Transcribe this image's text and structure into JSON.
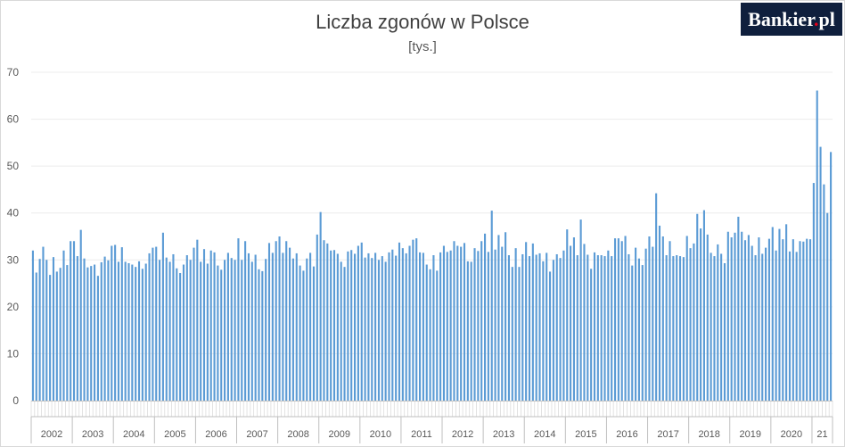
{
  "title": "Liczba zgonów w Polsce",
  "subtitle": "[tys.]",
  "logo_text": "Bankier.pl",
  "colors": {
    "bar": "#5b9bd5",
    "axis": "#bfbfbf",
    "grid": "#ececec",
    "text": "#595959"
  },
  "chart_data": {
    "type": "bar",
    "title": "Liczba zgonów w Polsce",
    "subtitle": "[tys.]",
    "ylim": [
      0,
      70
    ],
    "yticks": [
      0,
      10,
      20,
      30,
      40,
      50,
      60,
      70
    ],
    "grid": true,
    "year_labels": [
      "2002",
      "2003",
      "2004",
      "2005",
      "2006",
      "2007",
      "2008",
      "2009",
      "2010",
      "2011",
      "2012",
      "2013",
      "2014",
      "2015",
      "2016",
      "2017",
      "2018",
      "2019",
      "2020",
      "21"
    ],
    "series": [
      {
        "values": [
          32.0,
          27.3,
          30.2,
          32.8,
          30.0,
          26.8,
          30.6,
          27.5,
          28.3,
          32.0,
          28.9,
          34.0,
          34.0,
          30.8,
          36.4,
          30.3,
          28.4,
          28.7,
          29.0,
          26.6,
          29.5,
          30.7,
          29.9,
          33.0,
          33.2,
          29.6,
          32.7,
          29.6,
          29.3,
          29.0,
          28.5,
          29.7,
          28.1,
          29.2,
          31.4,
          32.6,
          32.8,
          30.0,
          35.8,
          30.5,
          29.6,
          31.2,
          28.2,
          27.2,
          29.0,
          31.0,
          30.0,
          32.6,
          34.3,
          29.6,
          32.3,
          29.2,
          32.0,
          31.6,
          28.8,
          27.9,
          30.0,
          31.5,
          30.4,
          30.0,
          34.6,
          30.0,
          34.0,
          31.4,
          29.6,
          31.1,
          28.0,
          27.6,
          30.2,
          33.6,
          31.5,
          34.0,
          35.0,
          31.5,
          34.0,
          32.6,
          30.3,
          31.4,
          28.8,
          27.7,
          30.3,
          31.5,
          28.6,
          35.4,
          40.2,
          34.2,
          33.5,
          32.0,
          32.1,
          31.3,
          29.6,
          28.5,
          31.8,
          32.1,
          31.3,
          33.0,
          33.7,
          30.5,
          31.4,
          30.4,
          31.5,
          30.0,
          30.8,
          29.6,
          31.6,
          32.2,
          30.9,
          33.7,
          32.5,
          31.4,
          33.0,
          34.3,
          34.6,
          31.6,
          31.5,
          29.0,
          28.0,
          31.0,
          27.7,
          31.6,
          33.0,
          31.7,
          32.0,
          34.0,
          33.0,
          32.8,
          33.6,
          29.7,
          29.6,
          32.5,
          31.9,
          34.0,
          35.6,
          31.7,
          40.5,
          32.2,
          35.3,
          32.8,
          35.9,
          31.0,
          28.5,
          32.5,
          28.5,
          31.2,
          33.8,
          30.8,
          33.5,
          31.1,
          31.4,
          29.7,
          31.5,
          27.5,
          30.0,
          31.2,
          30.4,
          32.0,
          36.5,
          33.0,
          34.8,
          31.0,
          38.6,
          33.4,
          31.1,
          28.1,
          31.6,
          31.0,
          31.0,
          30.8,
          32.0,
          30.8,
          34.6,
          34.6,
          34.0,
          35.1,
          31.2,
          28.8,
          32.6,
          30.3,
          28.9,
          32.4,
          35.0,
          32.8,
          44.2,
          37.3,
          35.0,
          31.0,
          34.0,
          30.8,
          31.0,
          30.8,
          30.6,
          35.1,
          32.5,
          33.5,
          39.8,
          36.7,
          40.6,
          35.4,
          31.5,
          30.8,
          33.3,
          31.3,
          29.3,
          36.0,
          34.8,
          35.8,
          39.2,
          36.0,
          34.2,
          35.3,
          33.0,
          31.0,
          34.8,
          31.3,
          32.6,
          34.5,
          37.0,
          32.0,
          36.6,
          34.4,
          37.6,
          31.8,
          34.4,
          31.7,
          34.0,
          33.9,
          34.5,
          34.4,
          46.4,
          66.1,
          54.1,
          46.1,
          40.0,
          53.0
        ]
      }
    ]
  }
}
